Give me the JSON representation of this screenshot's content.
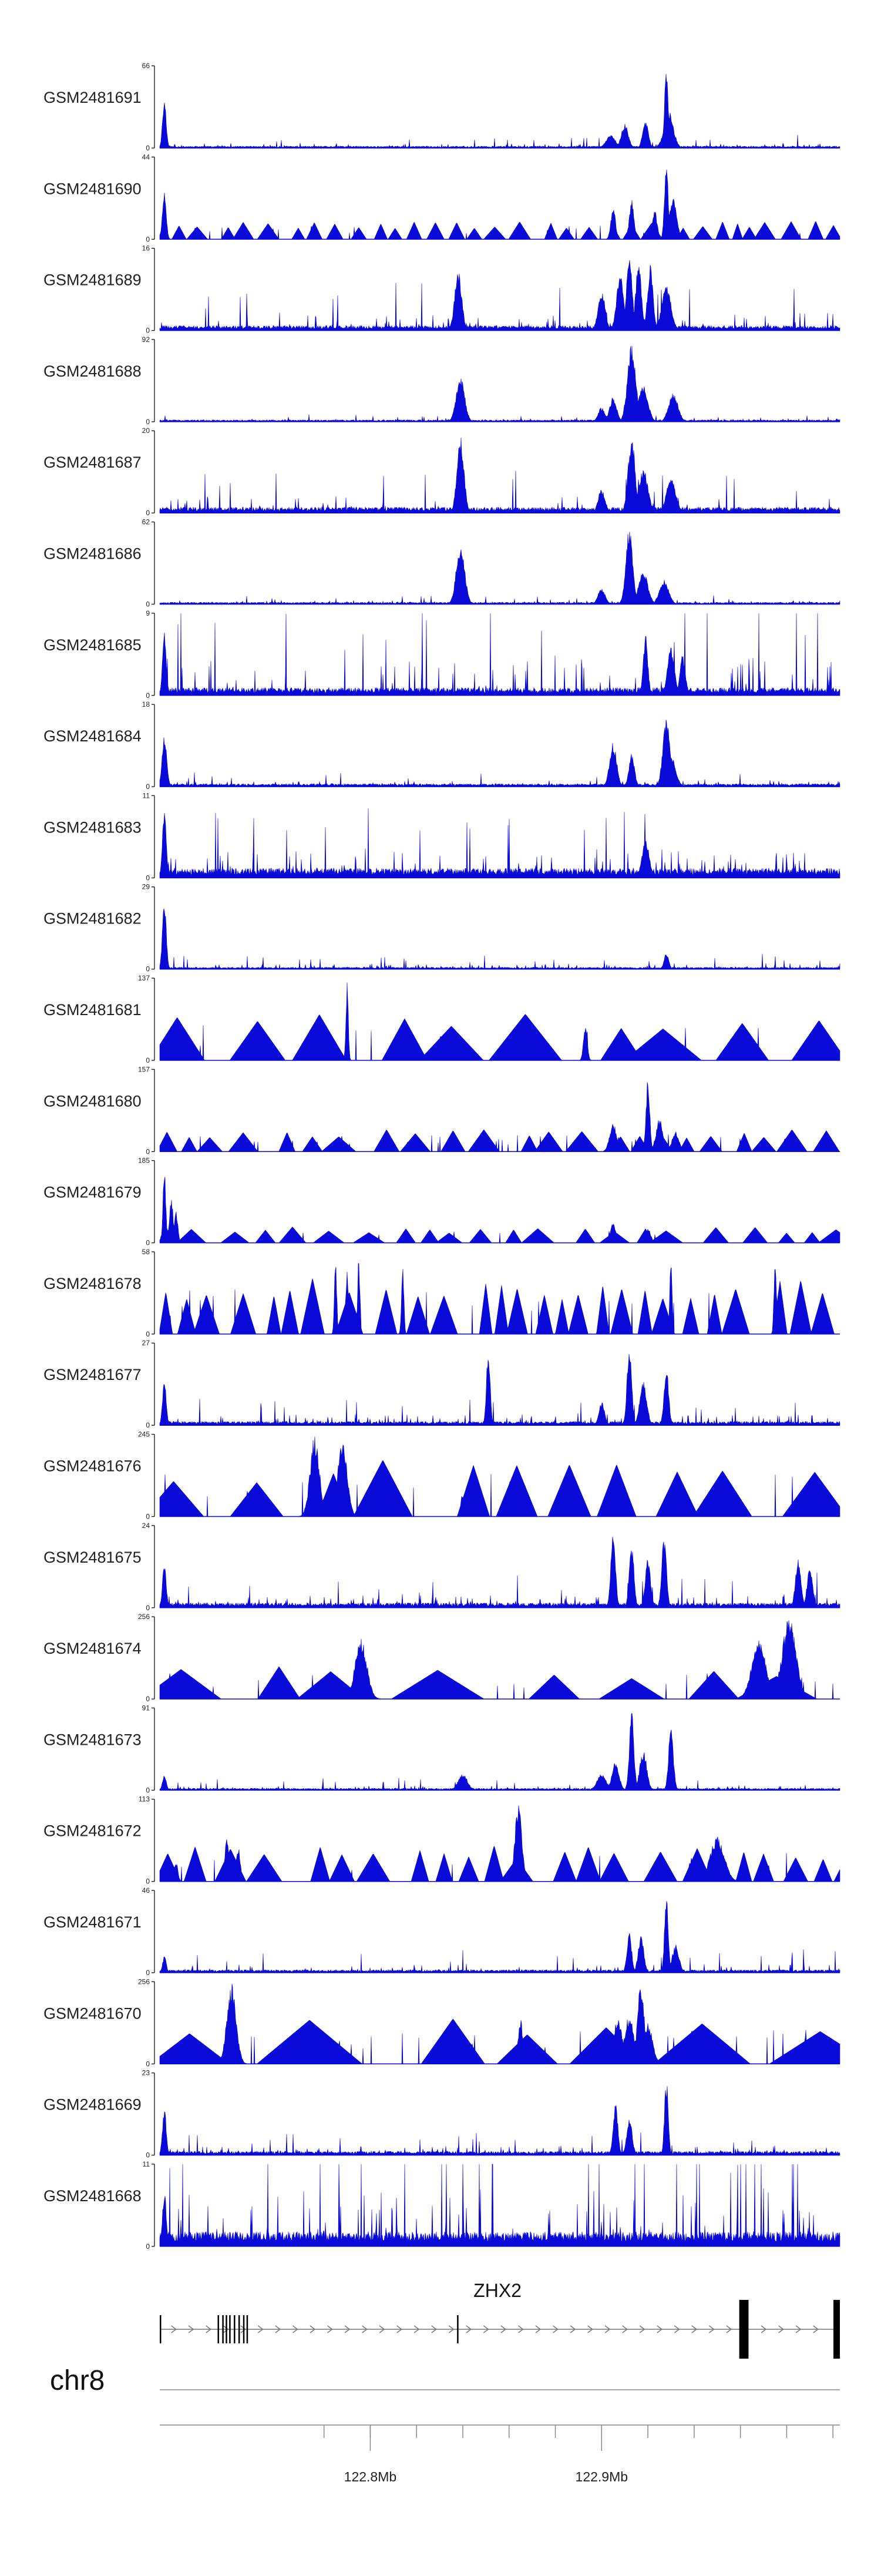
{
  "chart_data": {
    "type": "area",
    "title": "",
    "chromosome": "chr8",
    "colors": {
      "signal": "#0a0ad8",
      "axis": "#000000",
      "gene": "#000000",
      "ruler": "#888888"
    },
    "x_axis": {
      "range": [
        122.709,
        123.003
      ],
      "unit": "Mb",
      "major_ticks": [
        {
          "value": 122.8,
          "label": "122.8Mb"
        },
        {
          "value": 122.9,
          "label": "122.9Mb"
        }
      ],
      "minor_ticks": [
        122.78,
        122.8,
        122.82,
        122.84,
        122.86,
        122.88,
        122.9,
        122.92,
        122.94,
        122.96,
        122.98,
        123.0
      ]
    },
    "tracks": [
      {
        "name": "GSM2481691",
        "ymax": 66,
        "style": "noisy",
        "base": 0.02,
        "noise": 0.04,
        "seed": 11,
        "peaks": [
          [
            122.711,
            0.6,
            0.0008
          ],
          [
            122.904,
            0.16,
            0.002
          ],
          [
            122.91,
            0.3,
            0.0015
          ],
          [
            122.919,
            0.35,
            0.0012
          ],
          [
            122.928,
            1.0,
            0.0008
          ],
          [
            122.929,
            0.45,
            0.002
          ]
        ]
      },
      {
        "name": "GSM2481690",
        "ymax": 44,
        "style": "tri",
        "width": 0.007,
        "floor": 0.18,
        "seed": 21,
        "peaks": [
          [
            122.711,
            0.6,
            0.0008
          ],
          [
            122.905,
            0.4,
            0.001
          ],
          [
            122.913,
            0.5,
            0.001
          ],
          [
            122.923,
            0.35,
            0.001
          ],
          [
            122.928,
            1.0,
            0.0008
          ],
          [
            122.931,
            0.55,
            0.0015
          ]
        ]
      },
      {
        "name": "GSM2481689",
        "ymax": 16,
        "style": "noisy",
        "base": 0.05,
        "noise": 0.18,
        "seed": 31,
        "peaks": [
          [
            122.838,
            0.75,
            0.0015
          ],
          [
            122.9,
            0.5,
            0.0015
          ],
          [
            122.908,
            0.7,
            0.0015
          ],
          [
            122.912,
            0.95,
            0.0012
          ],
          [
            122.916,
            0.9,
            0.0012
          ],
          [
            122.921,
            0.8,
            0.0012
          ],
          [
            122.928,
            0.55,
            0.002
          ]
        ]
      },
      {
        "name": "GSM2481688",
        "ymax": 92,
        "style": "noisy",
        "base": 0.02,
        "noise": 0.02,
        "seed": 41,
        "peaks": [
          [
            122.839,
            0.55,
            0.0018
          ],
          [
            122.9,
            0.18,
            0.0015
          ],
          [
            122.905,
            0.3,
            0.0015
          ],
          [
            122.913,
            0.95,
            0.0018
          ],
          [
            122.918,
            0.45,
            0.002
          ],
          [
            122.931,
            0.35,
            0.002
          ]
        ]
      },
      {
        "name": "GSM2481687",
        "ymax": 20,
        "style": "noisy",
        "base": 0.06,
        "noise": 0.15,
        "seed": 51,
        "peaks": [
          [
            122.839,
            0.95,
            0.0015
          ],
          [
            122.913,
            0.95,
            0.0015
          ],
          [
            122.918,
            0.55,
            0.002
          ],
          [
            122.93,
            0.45,
            0.002
          ],
          [
            122.9,
            0.3,
            0.0015
          ]
        ]
      },
      {
        "name": "GSM2481686",
        "ymax": 62,
        "style": "noisy",
        "base": 0.02,
        "noise": 0.03,
        "seed": 61,
        "peaks": [
          [
            122.839,
            0.75,
            0.0018
          ],
          [
            122.9,
            0.2,
            0.0015
          ],
          [
            122.912,
            0.95,
            0.0015
          ],
          [
            122.918,
            0.4,
            0.002
          ],
          [
            122.927,
            0.3,
            0.002
          ]
        ]
      },
      {
        "name": "GSM2481685",
        "ymax": 9,
        "style": "noisy",
        "base": 0.08,
        "noise": 0.4,
        "seed": 71,
        "peaks": [
          [
            122.711,
            0.8,
            0.0008
          ],
          [
            122.919,
            0.75,
            0.001
          ],
          [
            122.93,
            0.6,
            0.0015
          ],
          [
            122.935,
            0.5,
            0.0012
          ]
        ]
      },
      {
        "name": "GSM2481684",
        "ymax": 18,
        "style": "noisy",
        "base": 0.03,
        "noise": 0.05,
        "seed": 81,
        "peaks": [
          [
            122.711,
            0.65,
            0.001
          ],
          [
            122.905,
            0.55,
            0.0015
          ],
          [
            122.913,
            0.4,
            0.0012
          ],
          [
            122.928,
            0.85,
            0.0015
          ],
          [
            122.93,
            0.4,
            0.002
          ]
        ]
      },
      {
        "name": "GSM2481683",
        "ymax": 11,
        "style": "noisy",
        "base": 0.1,
        "noise": 0.25,
        "seed": 91,
        "peaks": [
          [
            122.711,
            0.9,
            0.0008
          ],
          [
            122.919,
            0.5,
            0.0015
          ]
        ]
      },
      {
        "name": "GSM2481682",
        "ymax": 29,
        "style": "noisy",
        "base": 0.02,
        "noise": 0.05,
        "seed": 101,
        "peaks": [
          [
            122.711,
            0.9,
            0.0008
          ],
          [
            122.928,
            0.2,
            0.001
          ]
        ]
      },
      {
        "name": "GSM2481681",
        "ymax": 137,
        "style": "tri",
        "width": 0.027,
        "floor": 0.45,
        "seed": 111,
        "peaks": [
          [
            122.79,
            1.0,
            0.0005
          ],
          [
            122.893,
            0.45,
            0.0008
          ]
        ]
      },
      {
        "name": "GSM2481680",
        "ymax": 157,
        "style": "tri",
        "width": 0.011,
        "floor": 0.22,
        "seed": 121,
        "peaks": [
          [
            122.92,
            0.9,
            0.0008
          ],
          [
            122.905,
            0.35,
            0.0015
          ],
          [
            122.925,
            0.4,
            0.0015
          ],
          [
            122.932,
            0.25,
            0.0015
          ]
        ]
      },
      {
        "name": "GSM2481679",
        "ymax": 185,
        "style": "tri",
        "width": 0.011,
        "floor": 0.16,
        "seed": 131,
        "peaks": [
          [
            122.711,
            0.9,
            0.0006
          ],
          [
            122.714,
            0.55,
            0.0008
          ],
          [
            122.716,
            0.4,
            0.0008
          ],
          [
            122.905,
            0.25,
            0.0012
          ],
          [
            122.92,
            0.18,
            0.0012
          ]
        ]
      },
      {
        "name": "GSM2481678",
        "ymax": 58,
        "style": "tri",
        "width": 0.009,
        "floor": 0.55,
        "seed": 141,
        "peaks": [
          [
            122.785,
            0.95,
            0.0005
          ],
          [
            122.79,
            0.9,
            0.0005
          ],
          [
            122.795,
            0.95,
            0.0005
          ],
          [
            122.814,
            0.9,
            0.0005
          ],
          [
            122.93,
            0.95,
            0.0005
          ],
          [
            122.975,
            0.95,
            0.0005
          ]
        ]
      },
      {
        "name": "GSM2481677",
        "ymax": 27,
        "style": "noisy",
        "base": 0.04,
        "noise": 0.1,
        "seed": 151,
        "peaks": [
          [
            122.711,
            0.55,
            0.0008
          ],
          [
            122.851,
            0.95,
            0.0008
          ],
          [
            122.912,
            0.95,
            0.001
          ],
          [
            122.918,
            0.55,
            0.0015
          ],
          [
            122.928,
            0.7,
            0.001
          ],
          [
            122.9,
            0.3,
            0.0012
          ]
        ]
      },
      {
        "name": "GSM2481676",
        "ymax": 245,
        "style": "tri",
        "width": 0.02,
        "floor": 0.55,
        "seed": 161,
        "peaks": [
          [
            122.776,
            1.0,
            0.002
          ],
          [
            122.788,
            0.95,
            0.002
          ],
          [
            122.84,
            0.3,
            0.0008
          ]
        ]
      },
      {
        "name": "GSM2481675",
        "ymax": 24,
        "style": "noisy",
        "base": 0.05,
        "noise": 0.12,
        "seed": 171,
        "peaks": [
          [
            122.711,
            0.55,
            0.0008
          ],
          [
            122.905,
            0.95,
            0.001
          ],
          [
            122.913,
            0.8,
            0.001
          ],
          [
            122.92,
            0.6,
            0.0012
          ],
          [
            122.927,
            0.9,
            0.001
          ],
          [
            122.985,
            0.6,
            0.0012
          ],
          [
            122.99,
            0.5,
            0.0012
          ]
        ]
      },
      {
        "name": "GSM2481674",
        "ymax": 256,
        "style": "tri",
        "width": 0.03,
        "floor": 0.32,
        "seed": 181,
        "peaks": [
          [
            122.796,
            0.75,
            0.0025
          ],
          [
            122.968,
            0.75,
            0.003
          ],
          [
            122.981,
            1.0,
            0.003
          ]
        ]
      },
      {
        "name": "GSM2481673",
        "ymax": 91,
        "style": "noisy",
        "base": 0.02,
        "noise": 0.04,
        "seed": 191,
        "peaks": [
          [
            122.711,
            0.2,
            0.0008
          ],
          [
            122.84,
            0.2,
            0.002
          ],
          [
            122.906,
            0.35,
            0.0015
          ],
          [
            122.913,
            0.95,
            0.001
          ],
          [
            122.918,
            0.5,
            0.0015
          ],
          [
            122.93,
            0.8,
            0.001
          ],
          [
            122.9,
            0.2,
            0.002
          ]
        ]
      },
      {
        "name": "GSM2481672",
        "ymax": 113,
        "style": "tri",
        "width": 0.011,
        "floor": 0.35,
        "seed": 201,
        "peaks": [
          [
            122.716,
            0.25,
            0.0008
          ],
          [
            122.738,
            0.55,
            0.0008
          ],
          [
            122.743,
            0.45,
            0.0008
          ],
          [
            122.864,
            0.95,
            0.0015
          ],
          [
            122.905,
            0.35,
            0.001
          ],
          [
            122.95,
            0.55,
            0.003
          ]
        ]
      },
      {
        "name": "GSM2481671",
        "ymax": 46,
        "style": "noisy",
        "base": 0.03,
        "noise": 0.08,
        "seed": 211,
        "peaks": [
          [
            122.711,
            0.2,
            0.0008
          ],
          [
            122.912,
            0.5,
            0.001
          ],
          [
            122.917,
            0.45,
            0.0012
          ],
          [
            122.928,
            0.95,
            0.0008
          ],
          [
            122.932,
            0.35,
            0.0015
          ]
        ]
      },
      {
        "name": "GSM2481670",
        "ymax": 256,
        "style": "tri",
        "width": 0.04,
        "floor": 0.45,
        "seed": 221,
        "peaks": [
          [
            122.74,
            1.0,
            0.002
          ],
          [
            122.865,
            0.55,
            0.001
          ],
          [
            122.907,
            0.55,
            0.002
          ],
          [
            122.912,
            0.6,
            0.002
          ],
          [
            122.917,
            1.0,
            0.0015
          ],
          [
            122.92,
            0.5,
            0.002
          ]
        ]
      },
      {
        "name": "GSM2481669",
        "ymax": 23,
        "style": "noisy",
        "base": 0.04,
        "noise": 0.08,
        "seed": 231,
        "peaks": [
          [
            122.711,
            0.6,
            0.0008
          ],
          [
            122.906,
            0.65,
            0.001
          ],
          [
            122.912,
            0.45,
            0.0012
          ],
          [
            122.928,
            0.95,
            0.0008
          ]
        ]
      },
      {
        "name": "GSM2481668",
        "ymax": 11,
        "style": "noisy",
        "base": 0.15,
        "noise": 0.55,
        "seed": 241,
        "peaks": [
          [
            122.711,
            0.7,
            0.0008
          ]
        ]
      }
    ],
    "gene": {
      "name": "ZHX2",
      "strand": "+",
      "start": 122.709,
      "end": 123.003,
      "exons": [
        [
          122.709,
          122.7093
        ],
        [
          122.734,
          122.7343
        ],
        [
          122.736,
          122.7363
        ],
        [
          122.7375,
          122.7378
        ],
        [
          122.739,
          122.7393
        ],
        [
          122.741,
          122.7413
        ],
        [
          122.743,
          122.7433
        ],
        [
          122.745,
          122.7453
        ],
        [
          122.7465,
          122.7468
        ],
        [
          122.8375,
          122.8379
        ],
        [
          122.9595,
          122.9635
        ],
        [
          123.0002,
          123.003
        ]
      ]
    }
  }
}
